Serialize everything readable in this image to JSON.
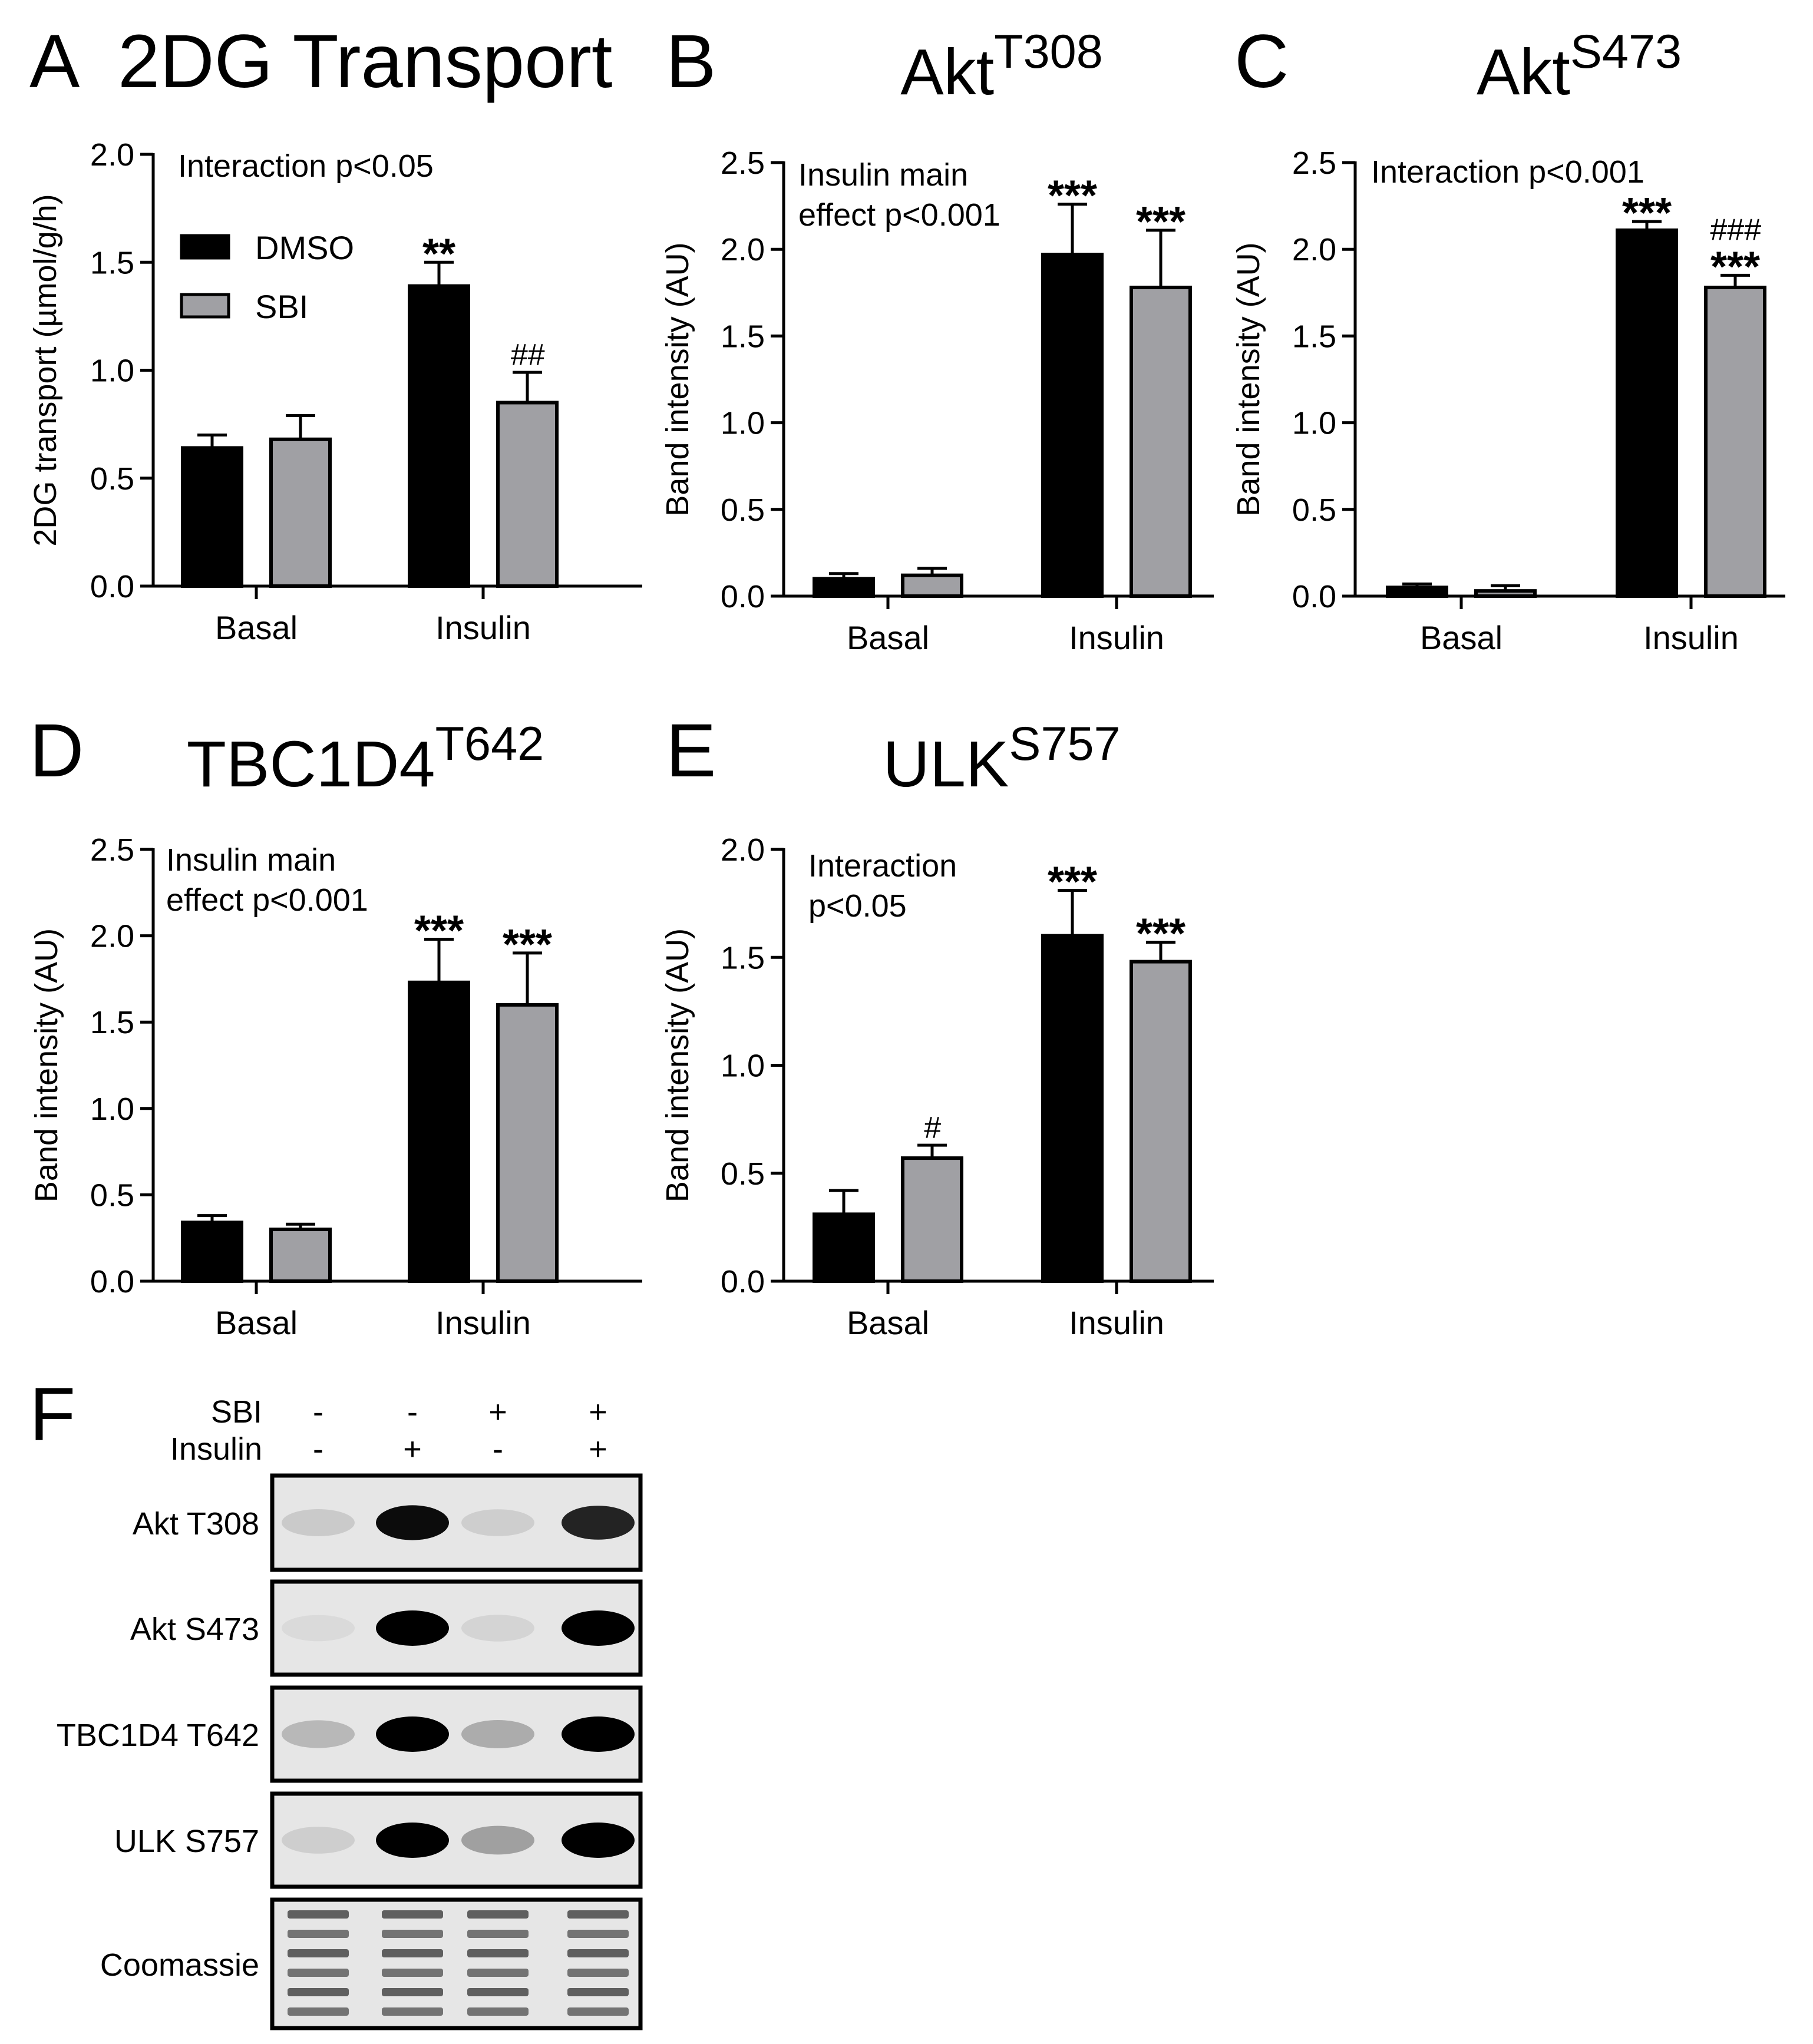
{
  "chart_data": [
    {
      "panel": "A",
      "type": "bar",
      "title": "2DG Transport",
      "ylabel": "2DG transport (µmol/g/h)",
      "xlabel": "",
      "ylim": [
        0,
        2.0
      ],
      "yticks": [
        "0.0",
        "0.5",
        "1.0",
        "1.5",
        "2.0"
      ],
      "categories": [
        "Basal",
        "Insulin"
      ],
      "annotation": [
        "Interaction p<0.05"
      ],
      "legend": {
        "placement": "top-left",
        "entries": [
          "DMSO",
          "SBI"
        ]
      },
      "series": [
        {
          "name": "DMSO",
          "color": "#000000",
          "values": [
            0.64,
            1.39
          ],
          "errors": [
            0.06,
            0.11
          ],
          "marks": [
            "",
            "**"
          ]
        },
        {
          "name": "SBI",
          "color": "#a0a0a4",
          "values": [
            0.68,
            0.85
          ],
          "errors": [
            0.11,
            0.14
          ],
          "marks": [
            "",
            "##"
          ]
        }
      ]
    },
    {
      "panel": "B",
      "type": "bar",
      "title_main": "Akt",
      "title_sup": "T308",
      "ylabel": "Band intensity (AU)",
      "xlabel": "",
      "ylim": [
        0,
        2.5
      ],
      "yticks": [
        "0.0",
        "0.5",
        "1.0",
        "1.5",
        "2.0",
        "2.5"
      ],
      "categories": [
        "Basal",
        "Insulin"
      ],
      "annotation": [
        "Insulin main",
        "effect p<0.001"
      ],
      "series": [
        {
          "color": "#000000",
          "values": [
            0.1,
            1.97
          ],
          "errors": [
            0.03,
            0.29
          ],
          "marks": [
            "",
            "***"
          ]
        },
        {
          "color": "#a0a0a4",
          "values": [
            0.12,
            1.78
          ],
          "errors": [
            0.04,
            0.33
          ],
          "marks": [
            "",
            "***"
          ]
        }
      ]
    },
    {
      "panel": "C",
      "type": "bar",
      "title_main": "Akt",
      "title_sup": "S473",
      "ylabel": "Band intensity (AU)",
      "xlabel": "",
      "ylim": [
        0,
        2.5
      ],
      "yticks": [
        "0.0",
        "0.5",
        "1.0",
        "1.5",
        "2.0",
        "2.5"
      ],
      "categories": [
        "Basal",
        "Insulin"
      ],
      "annotation": [
        "Interaction p<0.001"
      ],
      "series": [
        {
          "color": "#000000",
          "values": [
            0.05,
            2.11
          ],
          "errors": [
            0.02,
            0.05
          ],
          "marks": [
            "",
            "***"
          ]
        },
        {
          "color": "#a0a0a4",
          "values": [
            0.03,
            1.78
          ],
          "errors": [
            0.03,
            0.07
          ],
          "marks": [
            "",
            "###|***"
          ]
        }
      ]
    },
    {
      "panel": "D",
      "type": "bar",
      "title_main": "TBC1D4",
      "title_sup": "T642",
      "ylabel": "Band intensity (AU)",
      "xlabel": "",
      "ylim": [
        0,
        2.5
      ],
      "yticks": [
        "0.0",
        "0.5",
        "1.0",
        "1.5",
        "2.0",
        "2.5"
      ],
      "categories": [
        "Basal",
        "Insulin"
      ],
      "annotation": [
        "Insulin main",
        "effect p<0.001"
      ],
      "series": [
        {
          "color": "#000000",
          "values": [
            0.34,
            1.73
          ],
          "errors": [
            0.04,
            0.25
          ],
          "marks": [
            "",
            "***"
          ]
        },
        {
          "color": "#a0a0a4",
          "values": [
            0.3,
            1.6
          ],
          "errors": [
            0.03,
            0.3
          ],
          "marks": [
            "",
            "***"
          ]
        }
      ]
    },
    {
      "panel": "E",
      "type": "bar",
      "title_main": "ULK",
      "title_sup": "S757",
      "ylabel": "Band intensity (AU)",
      "xlabel": "",
      "ylim": [
        0,
        2.0
      ],
      "yticks": [
        "0.0",
        "0.5",
        "1.0",
        "1.5",
        "2.0"
      ],
      "categories": [
        "Basal",
        "Insulin"
      ],
      "annotation": [
        "Interaction",
        "p<0.05"
      ],
      "series": [
        {
          "color": "#000000",
          "values": [
            0.31,
            1.6
          ],
          "errors": [
            0.11,
            0.21
          ],
          "marks": [
            "",
            "***"
          ]
        },
        {
          "color": "#a0a0a4",
          "values": [
            0.57,
            1.48
          ],
          "errors": [
            0.06,
            0.09
          ],
          "marks": [
            "#",
            "***"
          ]
        }
      ]
    }
  ],
  "blot": {
    "panel": "F",
    "conditions": [
      {
        "label": "SBI",
        "values": [
          "-",
          "-",
          "+",
          "+"
        ]
      },
      {
        "label": "Insulin",
        "values": [
          "-",
          "+",
          "-",
          "+"
        ]
      }
    ],
    "rows": [
      {
        "label": "Akt T308",
        "intensity": [
          0.12,
          0.95,
          0.1,
          0.85
        ]
      },
      {
        "label": "Akt S473",
        "intensity": [
          0.03,
          1.0,
          0.08,
          1.0
        ]
      },
      {
        "label": "TBC1D4 T642",
        "intensity": [
          0.2,
          1.0,
          0.25,
          1.0
        ]
      },
      {
        "label": "ULK S757",
        "intensity": [
          0.1,
          1.0,
          0.3,
          1.0
        ]
      },
      {
        "label": "Coomassie",
        "intensity": [
          0.7,
          0.7,
          0.7,
          0.7
        ]
      }
    ]
  }
}
